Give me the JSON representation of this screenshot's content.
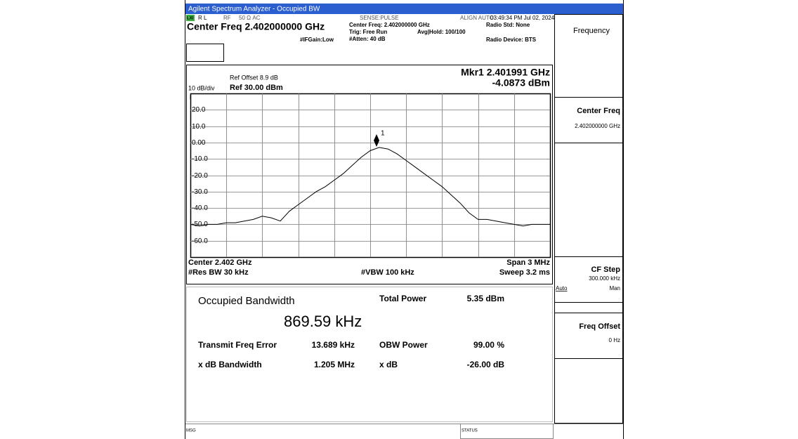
{
  "window_title": "Agilent Spectrum Analyzer - Occupied BW",
  "status_row": {
    "lxi": "LXI",
    "rl": "R L",
    "rf": "RF",
    "impedance": "50 Ω  AC",
    "sense": "SENSE:PULSE",
    "align": "ALIGN AUTO",
    "time": "03:49:34 PM Jul 02, 2024"
  },
  "header": {
    "center_freq": "Center Freq 2.402000000 GHz",
    "center_freq_small": "Center Freq: 2.402000000 GHz",
    "trig": "Trig: Free Run",
    "avg_hold": "Avg|Hold: 100/100",
    "atten": "#Atten: 40 dB",
    "if_gain": "#IFGain:Low",
    "radio_std": "Radio Std: None",
    "radio_device": "Radio Device: BTS"
  },
  "chart_data": {
    "type": "line",
    "ref_offset": "Ref Offset 8.9 dB",
    "scale_per_div": "10 dB/div",
    "ref_level": "Ref 30.00 dBm",
    "scale_type": "Log",
    "marker": {
      "label": "1",
      "freq": "Mkr1  2.401991 GHz",
      "amplitude": "-4.0873 dBm"
    },
    "center": "Center  2.402 GHz",
    "span": "Span 3 MHz",
    "res_bw": "#Res BW  30 kHz",
    "vbw": "#VBW  100 kHz",
    "sweep": "Sweep  3.2 ms",
    "ylim": [
      -70,
      30
    ],
    "yticks": [
      {
        "value": 20,
        "label": "20.0"
      },
      {
        "value": 10,
        "label": "10.0"
      },
      {
        "value": 0,
        "label": "0.00"
      },
      {
        "value": -10,
        "label": "-10.0"
      },
      {
        "value": -20,
        "label": "-20.0"
      },
      {
        "value": -30,
        "label": "-30.0"
      },
      {
        "value": -40,
        "label": "-40.0"
      },
      {
        "value": -50,
        "label": "-50.0"
      },
      {
        "value": -60,
        "label": "-60.0"
      }
    ],
    "grid": true,
    "color": "#000000",
    "values": [
      -50,
      -51,
      -50,
      -50,
      -49,
      -49,
      -48,
      -47,
      -45,
      -46,
      -48,
      -42,
      -38,
      -34,
      -30,
      -27,
      -23,
      -19,
      -14,
      -9,
      -5,
      -3,
      -4,
      -7,
      -11,
      -15,
      -19,
      -23,
      -27,
      -32,
      -37,
      -43,
      -47,
      -47,
      -48,
      -49,
      -50,
      -51,
      -50,
      -50,
      -50
    ]
  },
  "results": {
    "obw_label": "Occupied Bandwidth",
    "obw_value": "869.59 kHz",
    "total_power_label": "Total Power",
    "total_power_value": "5.35 dBm",
    "tx_freq_error_label": "Transmit Freq Error",
    "tx_freq_error_value": "13.689 kHz",
    "obw_power_label": "OBW Power",
    "obw_power_value": "99.00 %",
    "xdb_bw_label": "x dB Bandwidth",
    "xdb_bw_value": "1.205 MHz",
    "xdb_label": "x dB",
    "xdb_value": "-26.00 dB"
  },
  "softkeys": {
    "menu": "Frequency",
    "center_freq": "Center Freq",
    "center_freq_value": "2.402000000 GHz",
    "cf_step": "CF Step",
    "cf_step_value": "300.000 kHz",
    "auto": "Auto",
    "man": "Man",
    "freq_offset": "Freq Offset",
    "freq_offset_value": "0 Hz"
  },
  "footer": {
    "msg": "MSG",
    "status": "STATUS"
  }
}
